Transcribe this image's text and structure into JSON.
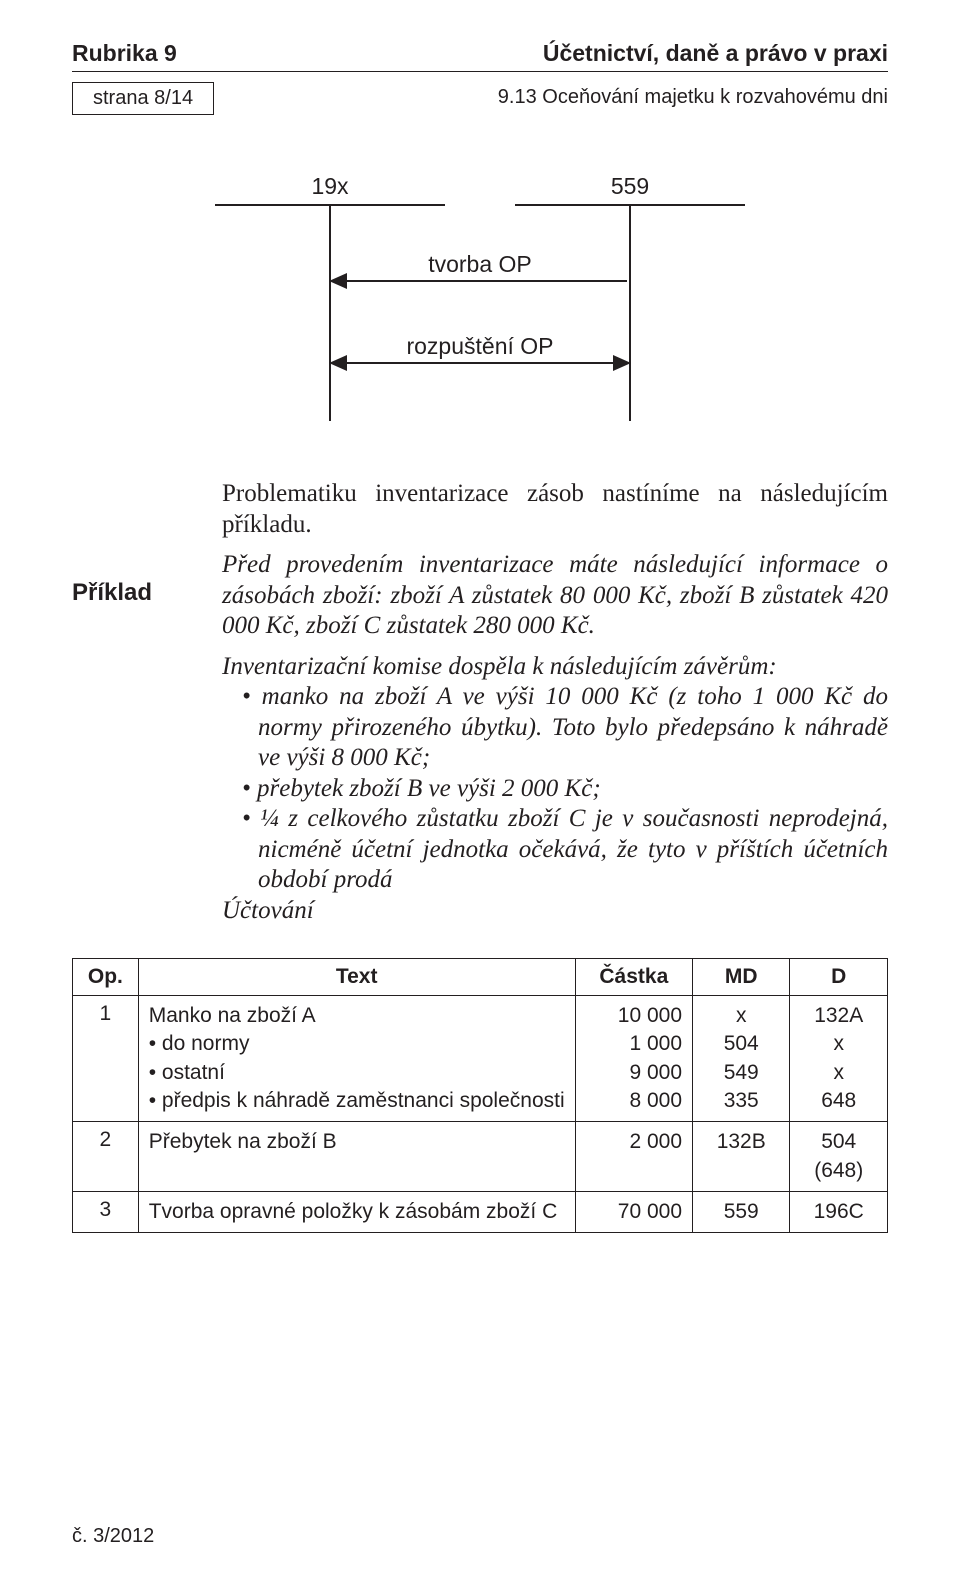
{
  "header": {
    "rubric": "Rubrika 9",
    "journal": "Účetnictví, daně a právo v praxi",
    "page_box": "strana 8/14",
    "subtitle": "9.13 Oceňování majetku k rozvahovému dni"
  },
  "diagram": {
    "left_account": "19x",
    "right_account": "559",
    "arrow_top_label": "tvorba OP",
    "arrow_bottom_label": "rozpuštění OP"
  },
  "body": {
    "margin_label": "Příklad",
    "intro": "Problematiku inventarizace zásob nastíníme na následujícím příkladu.",
    "para1": "Před provedením inventarizace máte následující informace o zásobách zboží: zboží A zůstatek 80 000 Kč, zboží B zůstatek 420 000 Kč, zboží C zůstatek 280 000 Kč.",
    "para2_lead": "Inventarizační komise dospěla k následujícím závěrům:",
    "bullets": [
      "manko na zboží A ve výši 10 000 Kč (z toho 1 000 Kč do normy přirozeného úbytku). Toto bylo předepsáno k náhradě ve výši 8 000 Kč;",
      "přebytek zboží B ve výši 2 000 Kč;",
      "¼ z celkového zůstatku zboží C je v současnosti neprodejná, nicméně účetní jednotka očekává, že tyto v příštích účetních období prodá"
    ],
    "uctovani": "Účtování"
  },
  "table": {
    "headers": {
      "op": "Op.",
      "text": "Text",
      "amount": "Částka",
      "md": "MD",
      "d": "D"
    },
    "rows": [
      {
        "op": "1",
        "text_lines": [
          "Manko na zboží A",
          "• do normy",
          "• ostatní",
          "• předpis k náhradě zaměstnanci společnosti"
        ],
        "amount_lines": [
          "10 000",
          "1 000",
          "9 000",
          "8 000"
        ],
        "md_lines": [
          "x",
          "504",
          "549",
          "335"
        ],
        "d_lines": [
          "132A",
          "x",
          "x",
          "648"
        ]
      },
      {
        "op": "2",
        "text_lines": [
          "Přebytek na zboží B"
        ],
        "amount_lines": [
          "2 000"
        ],
        "md_lines": [
          "132B"
        ],
        "d_lines": [
          "504",
          "(648)"
        ]
      },
      {
        "op": "3",
        "text_lines": [
          "Tvorba opravné položky k zásobám zboží C"
        ],
        "amount_lines": [
          "70 000"
        ],
        "md_lines": [
          "559"
        ],
        "d_lines": [
          "196C"
        ]
      }
    ]
  },
  "footer": {
    "issue": "č. 3/2012"
  }
}
